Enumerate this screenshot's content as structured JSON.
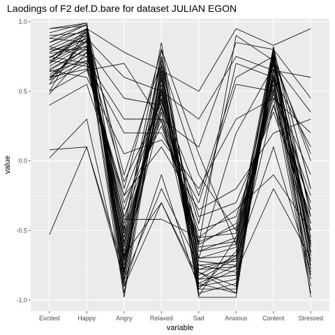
{
  "chart_data": {
    "type": "line",
    "title": "Laodings of F2 def.D.bare for dataset JULIAN EGON",
    "xlabel": "variable",
    "ylabel": "value",
    "categories": [
      "Excited",
      "Happy",
      "Angry",
      "Relaxed",
      "Sad",
      "Anxious",
      "Content",
      "Stressed"
    ],
    "ylim": [
      -1.08,
      1.02
    ],
    "yticks": [
      1.0,
      0.5,
      0.0,
      -0.5,
      -1.0
    ],
    "ytick_labels": [
      "1.0",
      "0.5",
      "0.0",
      "-0.5",
      "-1.0"
    ],
    "grid": true,
    "colors": {
      "panel": "#ebebeb",
      "grid_major": "#ffffff",
      "grid_minor": "#f5f5f5",
      "line": "#000000"
    },
    "series": [
      {
        "values": [
          0.88,
          0.98,
          -0.75,
          0.62,
          -0.85,
          -0.82,
          0.72,
          -0.65
        ]
      },
      {
        "values": [
          0.82,
          0.95,
          -0.88,
          0.55,
          -0.92,
          -0.65,
          0.78,
          -0.55
        ]
      },
      {
        "values": [
          0.78,
          0.9,
          -0.62,
          0.48,
          -0.8,
          -0.9,
          0.65,
          -0.72
        ]
      },
      {
        "values": [
          0.92,
          0.99,
          -0.95,
          0.7,
          -0.97,
          -0.55,
          0.82,
          -0.4
        ]
      },
      {
        "values": [
          0.7,
          0.85,
          -0.55,
          0.4,
          -0.72,
          -0.75,
          0.58,
          -0.82
        ]
      },
      {
        "values": [
          0.65,
          0.8,
          -0.48,
          0.35,
          -0.65,
          -0.6,
          0.52,
          -0.9
        ]
      },
      {
        "values": [
          0.6,
          0.75,
          -0.4,
          0.3,
          -0.58,
          -0.48,
          0.45,
          -0.95
        ]
      },
      {
        "values": [
          0.55,
          0.7,
          -0.3,
          0.25,
          -0.5,
          -0.4,
          0.4,
          -0.3
        ]
      },
      {
        "values": [
          0.95,
          0.97,
          -0.82,
          0.75,
          -0.88,
          -0.95,
          0.8,
          -0.2
        ]
      },
      {
        "values": [
          0.74,
          0.88,
          -0.7,
          0.58,
          -0.78,
          -0.7,
          0.7,
          -0.6
        ]
      },
      {
        "values": [
          0.68,
          0.83,
          -0.65,
          0.5,
          -0.7,
          -0.68,
          0.62,
          -0.5
        ]
      },
      {
        "values": [
          0.62,
          0.78,
          -0.58,
          0.44,
          -0.62,
          -0.58,
          0.55,
          -0.45
        ]
      },
      {
        "values": [
          0.8,
          0.92,
          -0.78,
          0.65,
          -0.95,
          -0.88,
          0.76,
          -0.78
        ]
      },
      {
        "values": [
          0.85,
          0.94,
          -0.85,
          0.68,
          -0.9,
          -0.78,
          0.74,
          -0.68
        ]
      },
      {
        "values": [
          0.58,
          0.72,
          -0.52,
          0.38,
          -0.55,
          -0.52,
          0.48,
          -0.58
        ]
      },
      {
        "values": [
          0.72,
          0.86,
          -0.68,
          0.52,
          -0.75,
          -0.72,
          0.66,
          -0.62
        ]
      },
      {
        "values": [
          0.5,
          0.65,
          0.7,
          0.28,
          -0.6,
          0.9,
          0.72,
          -0.5
        ]
      },
      {
        "values": [
          0.6,
          0.82,
          0.45,
          0.4,
          -0.45,
          0.7,
          0.6,
          -0.35
        ]
      },
      {
        "values": [
          0.75,
          0.7,
          0.2,
          0.2,
          -0.3,
          0.55,
          0.5,
          -0.25
        ]
      },
      {
        "values": [
          0.65,
          0.6,
          0.05,
          0.15,
          -0.2,
          0.3,
          0.45,
          0.2
        ]
      },
      {
        "values": [
          0.85,
          0.98,
          -0.2,
          0.8,
          0.05,
          -0.6,
          0.8,
          0.45
        ]
      },
      {
        "values": [
          0.9,
          0.92,
          -0.1,
          0.72,
          -0.1,
          -0.5,
          0.7,
          0.35
        ]
      },
      {
        "values": [
          0.7,
          0.95,
          0.78,
          0.65,
          0.5,
          0.95,
          0.83,
          0.95
        ]
      },
      {
        "values": [
          0.78,
          0.88,
          0.6,
          0.5,
          0.3,
          0.75,
          0.65,
          0.6
        ]
      },
      {
        "values": [
          0.4,
          0.55,
          -0.25,
          0.1,
          -0.35,
          -0.2,
          0.2,
          0.3
        ]
      },
      {
        "values": [
          0.02,
          0.3,
          -0.9,
          -0.3,
          -0.85,
          -0.7,
          0.1,
          -0.8
        ]
      },
      {
        "values": [
          -0.53,
          0.1,
          -0.85,
          -0.2,
          -0.75,
          -0.8,
          -0.2,
          -0.7
        ]
      },
      {
        "values": [
          0.08,
          0.1,
          -0.8,
          0.8,
          -0.9,
          -0.85,
          0.6,
          -0.75
        ]
      },
      {
        "values": [
          0.5,
          0.95,
          -0.5,
          0.85,
          -0.8,
          -0.95,
          0.82,
          -0.98
        ]
      },
      {
        "values": [
          0.66,
          0.8,
          -0.98,
          0.6,
          -0.98,
          -0.98,
          0.75,
          -0.55
        ]
      },
      {
        "values": [
          0.82,
          0.75,
          -0.35,
          0.45,
          -0.4,
          -0.3,
          0.35,
          -0.4
        ]
      },
      {
        "values": [
          0.55,
          0.9,
          -0.6,
          0.55,
          -0.7,
          -0.62,
          0.6,
          0.1
        ]
      },
      {
        "values": [
          0.72,
          0.68,
          -0.45,
          0.7,
          -0.6,
          -0.45,
          0.5,
          -0.1
        ]
      },
      {
        "values": [
          0.88,
          0.85,
          -0.72,
          0.35,
          -0.82,
          -0.68,
          0.72,
          0.05
        ]
      },
      {
        "values": [
          0.6,
          0.66,
          -0.25,
          0.45,
          -0.65,
          -0.55,
          0.55,
          -0.85
        ]
      },
      {
        "values": [
          0.77,
          0.82,
          -0.9,
          -0.1,
          -0.92,
          -0.92,
          0.78,
          -0.6
        ]
      },
      {
        "values": [
          0.7,
          0.93,
          -0.68,
          -0.3,
          -0.88,
          -0.75,
          0.4,
          -0.45
        ]
      },
      {
        "values": [
          0.95,
          0.99,
          -0.55,
          0.75,
          -0.7,
          0.2,
          0.68,
          -0.35
        ]
      },
      {
        "values": [
          0.48,
          0.78,
          -0.42,
          -0.42,
          -0.55,
          -0.35,
          -0.1,
          -0.5
        ]
      },
      {
        "values": [
          0.64,
          0.72,
          0.3,
          0.3,
          0.1,
          0.85,
          0.8,
          -0.2
        ]
      },
      {
        "values": [
          0.8,
          0.8,
          -0.15,
          0.42,
          -0.25,
          0.6,
          0.75,
          0.0
        ]
      },
      {
        "values": [
          0.58,
          0.87,
          -0.8,
          0.52,
          -0.85,
          -0.82,
          0.66,
          -0.72
        ]
      },
      {
        "values": [
          0.74,
          0.91,
          -0.72,
          0.64,
          -0.78,
          -0.76,
          0.7,
          -0.66
        ]
      }
    ]
  }
}
